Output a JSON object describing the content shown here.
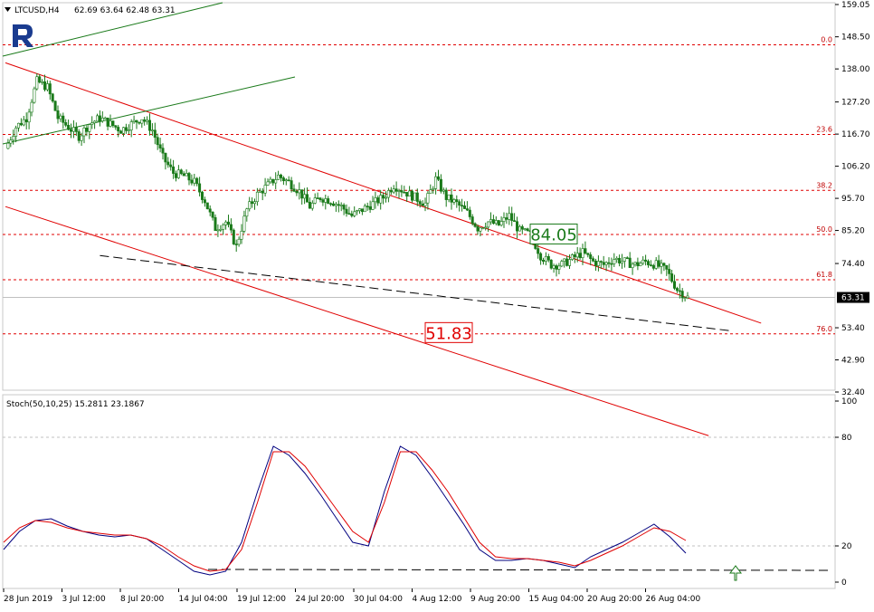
{
  "header": {
    "symbol": "LTCUSD,H4",
    "ohlc": "62.69 63.64 62.48 63.31"
  },
  "logo": {
    "letter": "R",
    "color": "#1a3b8f"
  },
  "colors": {
    "candle": "#1a7a1a",
    "channel": "#e00000",
    "fib": "#e00000",
    "green_channel": "#1a7a1a",
    "stoch_main": "#00007f",
    "stoch_signal": "#e00000",
    "price_label_bg": "#ffffff"
  },
  "chart_data": [
    {
      "type": "candlestick",
      "title": "LTCUSD,H4",
      "ylim": [
        32.4,
        159.05
      ],
      "y_ticks": [
        "159.05",
        "148.50",
        "138.00",
        "127.20",
        "116.70",
        "106.20",
        "95.70",
        "85.20",
        "74.40",
        "63.31",
        "53.40",
        "42.90",
        "32.40"
      ],
      "last_price": "63.31",
      "x_ticks": [
        "28 Jun 2019",
        "3 Jul 12:00",
        "8 Jul 20:00",
        "14 Jul 04:00",
        "19 Jul 12:00",
        "24 Jul 20:00",
        "30 Jul 04:00",
        "4 Aug 12:00",
        "9 Aug 20:00",
        "15 Aug 04:00",
        "20 Aug 20:00",
        "26 Aug 04:00"
      ],
      "price_path": [
        [
          0,
          112
        ],
        [
          1,
          119
        ],
        [
          2,
          122
        ],
        [
          3,
          134
        ],
        [
          4,
          132
        ],
        [
          5,
          122
        ],
        [
          6,
          119
        ],
        [
          7,
          116
        ],
        [
          8,
          120
        ],
        [
          9,
          122
        ],
        [
          10,
          120
        ],
        [
          11,
          118
        ],
        [
          12,
          120
        ],
        [
          13,
          122
        ],
        [
          14,
          118
        ],
        [
          15,
          109
        ],
        [
          16,
          104
        ],
        [
          17,
          103
        ],
        [
          18,
          101
        ],
        [
          19,
          95
        ],
        [
          20,
          86
        ],
        [
          21,
          88
        ],
        [
          22,
          80
        ],
        [
          23,
          92
        ],
        [
          24,
          97
        ],
        [
          25,
          100
        ],
        [
          26,
          103
        ],
        [
          27,
          101
        ],
        [
          28,
          98
        ],
        [
          29,
          93
        ],
        [
          30,
          96
        ],
        [
          31,
          95
        ],
        [
          32,
          93
        ],
        [
          33,
          90
        ],
        [
          34,
          92
        ],
        [
          35,
          94
        ],
        [
          36,
          96
        ],
        [
          37,
          100
        ],
        [
          38,
          98
        ],
        [
          39,
          96
        ],
        [
          40,
          94
        ],
        [
          41,
          102
        ],
        [
          42,
          96
        ],
        [
          43,
          94
        ],
        [
          44,
          91
        ],
        [
          45,
          86
        ],
        [
          46,
          88
        ],
        [
          47,
          87
        ],
        [
          48,
          90
        ],
        [
          49,
          85
        ],
        [
          50,
          84
        ],
        [
          51,
          77
        ],
        [
          52,
          74
        ],
        [
          53,
          74
        ],
        [
          54,
          76
        ],
        [
          55,
          78
        ],
        [
          56,
          75
        ],
        [
          57,
          74
        ],
        [
          58,
          76
        ],
        [
          59,
          75
        ],
        [
          60,
          74
        ],
        [
          61,
          75
        ],
        [
          62,
          74
        ],
        [
          63,
          72
        ],
        [
          64,
          66
        ],
        [
          65,
          63.31
        ]
      ],
      "fib_levels": [
        {
          "label": "0.0",
          "value": 145.9
        },
        {
          "label": "23.6",
          "value": 116.6
        },
        {
          "label": "38.2",
          "value": 98.3
        },
        {
          "label": "50.0",
          "value": 83.9
        },
        {
          "label": "61.8",
          "value": 69.1
        },
        {
          "label": "76.0",
          "value": 51.4
        }
      ],
      "annotations": [
        {
          "text": "84.05",
          "color": "#1a7a1a",
          "value": 84.05,
          "x": 50
        },
        {
          "text": "51.83",
          "color": "#e00000",
          "value": 51.83,
          "x": 40
        }
      ],
      "channel_upper": [
        [
          0,
          140
        ],
        [
          55,
          75
        ]
      ],
      "channel_lower": [
        [
          0,
          93
        ],
        [
          51,
          36
        ]
      ],
      "green_upper": [
        [
          0,
          151
        ],
        [
          15,
          182
        ]
      ],
      "green_lower": [
        [
          0,
          115
        ],
        [
          20,
          141
        ]
      ],
      "dashed_support": [
        [
          9,
          77
        ],
        [
          53,
          59
        ]
      ]
    },
    {
      "type": "line",
      "title": "Stoch(50,10,25) 15.2811 23.1867",
      "ylim": [
        0,
        100
      ],
      "y_ticks": [
        "100",
        "80",
        "20",
        "0"
      ],
      "series": [
        {
          "name": "main",
          "values": [
            18,
            28,
            34,
            35,
            31,
            28,
            26,
            25,
            26,
            24,
            18,
            12,
            6,
            4,
            6,
            22,
            50,
            75,
            70,
            60,
            48,
            35,
            22,
            20,
            50,
            75,
            70,
            58,
            45,
            32,
            18,
            12,
            12,
            13,
            12,
            10,
            8,
            14,
            18,
            22,
            27,
            32,
            25,
            16
          ]
        },
        {
          "name": "signal",
          "values": [
            22,
            30,
            34,
            33,
            30,
            28,
            27,
            26,
            26,
            24,
            20,
            14,
            9,
            6,
            7,
            18,
            44,
            72,
            72,
            64,
            52,
            40,
            28,
            22,
            44,
            72,
            72,
            62,
            50,
            36,
            22,
            14,
            13,
            13,
            12,
            11,
            9,
            12,
            16,
            20,
            25,
            30,
            28,
            23
          ]
        }
      ],
      "dashed_level": 7
    }
  ]
}
